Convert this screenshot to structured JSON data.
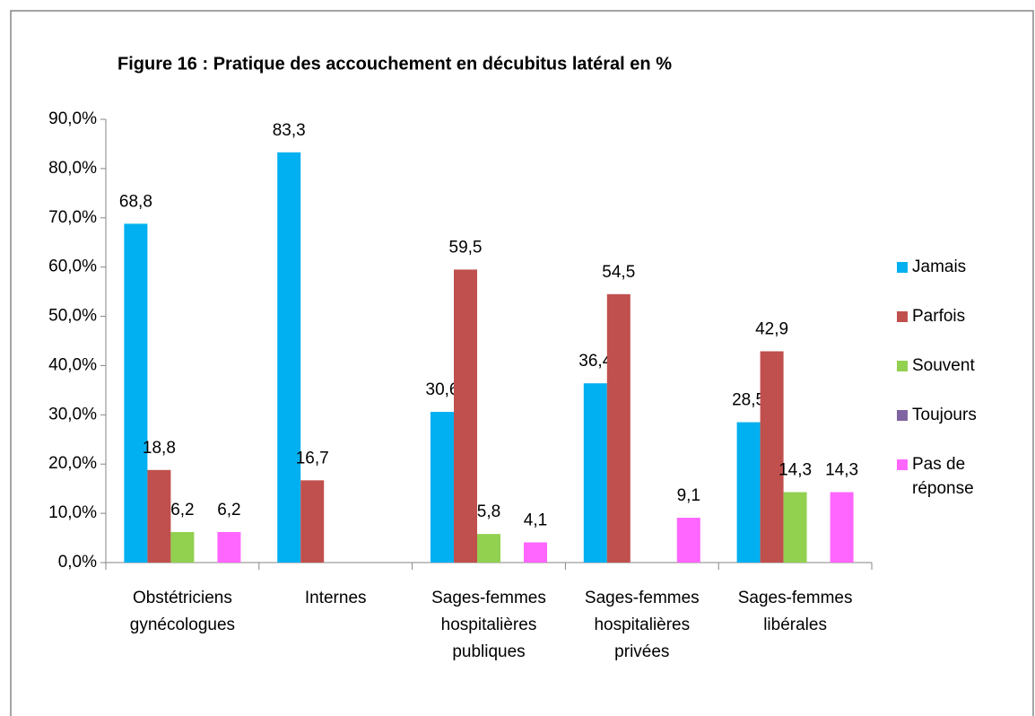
{
  "chart_data": {
    "type": "bar",
    "title": "Figure 16 : Pratique des accouchement en décubitus latéral en  %",
    "categories": [
      "Obstétriciens gynécologues",
      "Internes",
      "Sages-femmes hospitalières publiques",
      "Sages-femmes hospitalières privées",
      "Sages-femmes libérales"
    ],
    "series": [
      {
        "name": "Jamais",
        "color": "#00b0f0",
        "values": [
          68.8,
          83.3,
          30.6,
          36.4,
          28.5
        ],
        "value_labels": [
          "68,8",
          "83,3",
          "30,6",
          "36,4",
          "28,5"
        ]
      },
      {
        "name": "Parfois",
        "color": "#c0504d",
        "values": [
          18.8,
          16.7,
          59.5,
          54.5,
          42.9
        ],
        "value_labels": [
          "18,8",
          "16,7",
          "59,5",
          "54,5",
          "42,9"
        ]
      },
      {
        "name": "Souvent",
        "color": "#92d050",
        "values": [
          6.2,
          null,
          5.8,
          null,
          14.3
        ],
        "value_labels": [
          "6,2",
          null,
          "5,8",
          null,
          "14,3"
        ]
      },
      {
        "name": "Toujours",
        "color": "#8064a2",
        "values": [
          null,
          null,
          null,
          null,
          null
        ],
        "value_labels": [
          null,
          null,
          null,
          null,
          null
        ]
      },
      {
        "name": "Pas de réponse",
        "color": "#ff66ff",
        "values": [
          6.2,
          null,
          4.1,
          9.1,
          14.3
        ],
        "value_labels": [
          "6,2",
          null,
          "4,1",
          "9,1",
          "14,3"
        ]
      }
    ],
    "ylim": [
      0,
      90
    ],
    "yticks": [
      {
        "value": 0,
        "label": "0,0%"
      },
      {
        "value": 10,
        "label": "10,0%"
      },
      {
        "value": 20,
        "label": "20,0%"
      },
      {
        "value": 30,
        "label": "30,0%"
      },
      {
        "value": 40,
        "label": "40,0%"
      },
      {
        "value": 50,
        "label": "50,0%"
      },
      {
        "value": 60,
        "label": "60,0%"
      },
      {
        "value": 70,
        "label": "70,0%"
      },
      {
        "value": 80,
        "label": "80,0%"
      },
      {
        "value": 90,
        "label": "90,0%"
      }
    ],
    "legend": "right"
  }
}
